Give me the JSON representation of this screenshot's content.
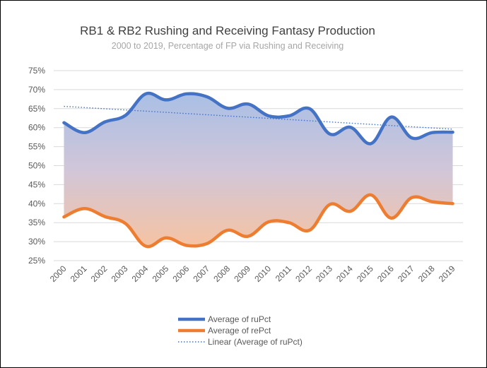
{
  "chart_data": {
    "type": "area",
    "title": "RB1 & RB2 Rushing and Receiving Fantasy Production",
    "subtitle": "2000 to 2019, Percentage of FP via Rushing and Receiving",
    "categories": [
      "2000",
      "2001",
      "2002",
      "2003",
      "2004",
      "2005",
      "2006",
      "2007",
      "2008",
      "2009",
      "2010",
      "2011",
      "2012",
      "2013",
      "2014",
      "2015",
      "2016",
      "2017",
      "2018",
      "2019"
    ],
    "series": [
      {
        "name": "Average of ruPct",
        "color": "#4472c4",
        "values": [
          61.3,
          58.7,
          61.5,
          63.2,
          68.9,
          67.3,
          68.9,
          68.1,
          65.1,
          66.2,
          63.1,
          63.1,
          65.0,
          58.3,
          60.1,
          55.8,
          62.8,
          57.3,
          58.7,
          58.8
        ]
      },
      {
        "name": "Average of rePct",
        "color": "#ed7d31",
        "values": [
          36.5,
          38.7,
          36.6,
          34.8,
          28.8,
          31.0,
          29.0,
          29.5,
          33.0,
          31.4,
          35.2,
          35.0,
          33.0,
          39.8,
          38.0,
          42.3,
          36.2,
          41.6,
          40.5,
          40.0
        ]
      }
    ],
    "trendline": {
      "name": "Linear (Average of ruPct)",
      "color": "#4472c4",
      "start": 65.6,
      "end": 59.6
    },
    "ylim": [
      25,
      75
    ],
    "yticks": [
      "25%",
      "30%",
      "35%",
      "40%",
      "45%",
      "50%",
      "55%",
      "60%",
      "65%",
      "70%",
      "75%"
    ],
    "grid": true,
    "legend_position": "bottom"
  }
}
